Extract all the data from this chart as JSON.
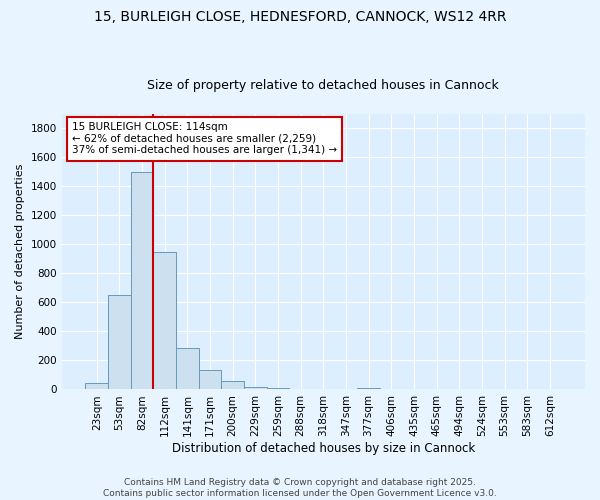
{
  "title": "15, BURLEIGH CLOSE, HEDNESFORD, CANNOCK, WS12 4RR",
  "subtitle": "Size of property relative to detached houses in Cannock",
  "xlabel": "Distribution of detached houses by size in Cannock",
  "ylabel": "Number of detached properties",
  "bar_labels": [
    "23sqm",
    "53sqm",
    "82sqm",
    "112sqm",
    "141sqm",
    "171sqm",
    "200sqm",
    "229sqm",
    "259sqm",
    "288sqm",
    "318sqm",
    "347sqm",
    "377sqm",
    "406sqm",
    "435sqm",
    "465sqm",
    "494sqm",
    "524sqm",
    "553sqm",
    "583sqm",
    "612sqm"
  ],
  "bar_values": [
    45,
    650,
    1500,
    950,
    285,
    135,
    60,
    20,
    8,
    3,
    2,
    1,
    12,
    1,
    0,
    0,
    0,
    0,
    0,
    0,
    0
  ],
  "bar_color": "#cde0f0",
  "bar_edgecolor": "#6699bb",
  "ylim": [
    0,
    1900
  ],
  "yticks": [
    0,
    200,
    400,
    600,
    800,
    1000,
    1200,
    1400,
    1600,
    1800
  ],
  "vline_color": "#cc0000",
  "vline_pos": 2.5,
  "annotation_text": "15 BURLEIGH CLOSE: 114sqm\n← 62% of detached houses are smaller (2,259)\n37% of semi-detached houses are larger (1,341) →",
  "annotation_box_facecolor": "#ffffff",
  "annotation_box_edgecolor": "#cc0000",
  "plot_bg_color": "#ddeeff",
  "fig_bg_color": "#e8f4ff",
  "grid_color": "#ffffff",
  "footer_text": "Contains HM Land Registry data © Crown copyright and database right 2025.\nContains public sector information licensed under the Open Government Licence v3.0.",
  "title_fontsize": 10,
  "subtitle_fontsize": 9,
  "xlabel_fontsize": 8.5,
  "ylabel_fontsize": 8,
  "tick_fontsize": 7.5,
  "annotation_fontsize": 7.5,
  "footer_fontsize": 6.5
}
